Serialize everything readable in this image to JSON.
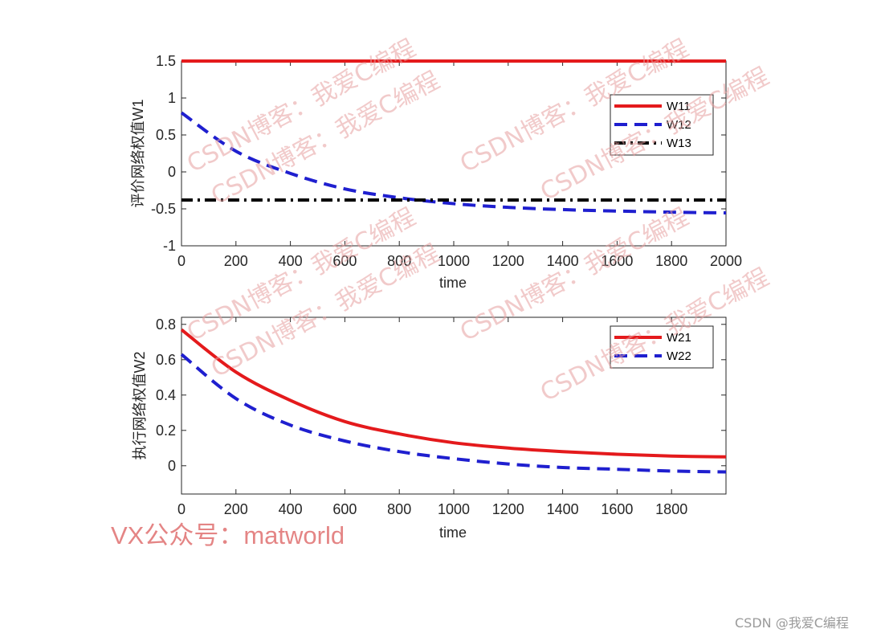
{
  "colors": {
    "red": "#e41a1c",
    "blue": "#1f1fcf",
    "black": "#000000",
    "axis": "#262626",
    "watermark": "#e6a0a0"
  },
  "chart_data": [
    {
      "type": "line",
      "xlabel": "time",
      "ylabel": "评价网络权值W1",
      "xlim": [
        0,
        2000
      ],
      "ylim": [
        -1,
        1.5
      ],
      "xticks": [
        0,
        200,
        400,
        600,
        800,
        1000,
        1200,
        1400,
        1600,
        1800,
        2000
      ],
      "yticks": [
        -1,
        -0.5,
        0,
        0.5,
        1,
        1.5
      ],
      "legend_position": "top-right",
      "series": [
        {
          "name": "W11",
          "color": "#e41a1c",
          "dash": "solid",
          "x": [
            0,
            2000
          ],
          "y": [
            1.5,
            1.5
          ]
        },
        {
          "name": "W12",
          "color": "#1f1fcf",
          "dash": "dashed",
          "x": [
            0,
            200,
            400,
            600,
            800,
            1000,
            1200,
            1400,
            1600,
            1800,
            2000
          ],
          "y": [
            0.8,
            0.28,
            -0.02,
            -0.23,
            -0.35,
            -0.43,
            -0.48,
            -0.51,
            -0.53,
            -0.545,
            -0.555
          ]
        },
        {
          "name": "W13",
          "color": "#000000",
          "dash": "dashdot",
          "x": [
            0,
            2000
          ],
          "y": [
            -0.38,
            -0.38
          ]
        }
      ]
    },
    {
      "type": "line",
      "xlabel": "time",
      "ylabel": "执行网络权值W2",
      "xlim": [
        0,
        2000
      ],
      "ylim": [
        -0.16,
        0.84
      ],
      "xticks": [
        0,
        200,
        400,
        600,
        800,
        1000,
        1200,
        1400,
        1600,
        1800
      ],
      "yticks": [
        0,
        0.2,
        0.4,
        0.6,
        0.8
      ],
      "legend_position": "top-right",
      "series": [
        {
          "name": "W21",
          "color": "#e41a1c",
          "dash": "solid",
          "x": [
            0,
            200,
            400,
            600,
            800,
            1000,
            1200,
            1400,
            1600,
            1800,
            2000
          ],
          "y": [
            0.77,
            0.53,
            0.37,
            0.25,
            0.18,
            0.13,
            0.1,
            0.08,
            0.065,
            0.055,
            0.05
          ]
        },
        {
          "name": "W22",
          "color": "#1f1fcf",
          "dash": "dashed",
          "x": [
            0,
            200,
            400,
            600,
            800,
            1000,
            1200,
            1400,
            1600,
            1800,
            2000
          ],
          "y": [
            0.63,
            0.38,
            0.23,
            0.14,
            0.08,
            0.04,
            0.01,
            -0.01,
            -0.02,
            -0.03,
            -0.035
          ]
        }
      ]
    }
  ],
  "watermarks": {
    "csdn_text": "CSDN博客：我爱C编程",
    "vx_text": "VX公众号：matworld",
    "footer_text": "CSDN @我爱C编程"
  }
}
